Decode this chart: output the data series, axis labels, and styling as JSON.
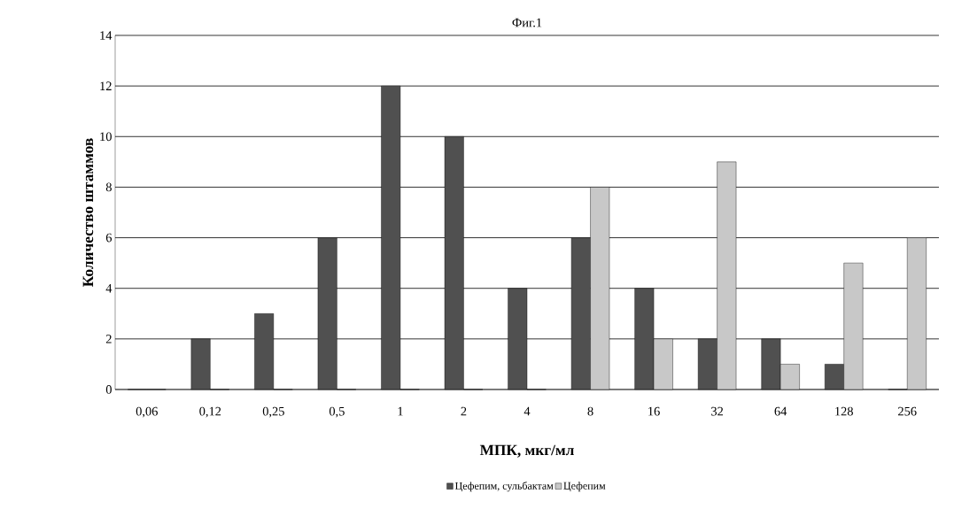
{
  "chart_data": {
    "type": "bar",
    "title": "Фиг.1",
    "xlabel": "МПК, мкг/мл",
    "ylabel": "Количество штаммов",
    "categories": [
      "0,06",
      "0,12",
      "0,25",
      "0,5",
      "1",
      "2",
      "4",
      "8",
      "16",
      "32",
      "64",
      "128",
      "256"
    ],
    "series": [
      {
        "name": "Цефепим, сульбактам",
        "color": "#505050",
        "values": [
          0,
          2,
          3,
          6,
          12,
          10,
          4,
          6,
          4,
          2,
          2,
          1,
          0
        ]
      },
      {
        "name": "Цефепим",
        "color": "#c8c8c8",
        "values": [
          0,
          0,
          0,
          0,
          0,
          0,
          0,
          8,
          2,
          9,
          1,
          5,
          6
        ]
      }
    ],
    "ylim": [
      0,
      14
    ],
    "yticks": [
      0,
      2,
      4,
      6,
      8,
      10,
      12,
      14
    ],
    "grid": "y",
    "legend": "bottom"
  }
}
